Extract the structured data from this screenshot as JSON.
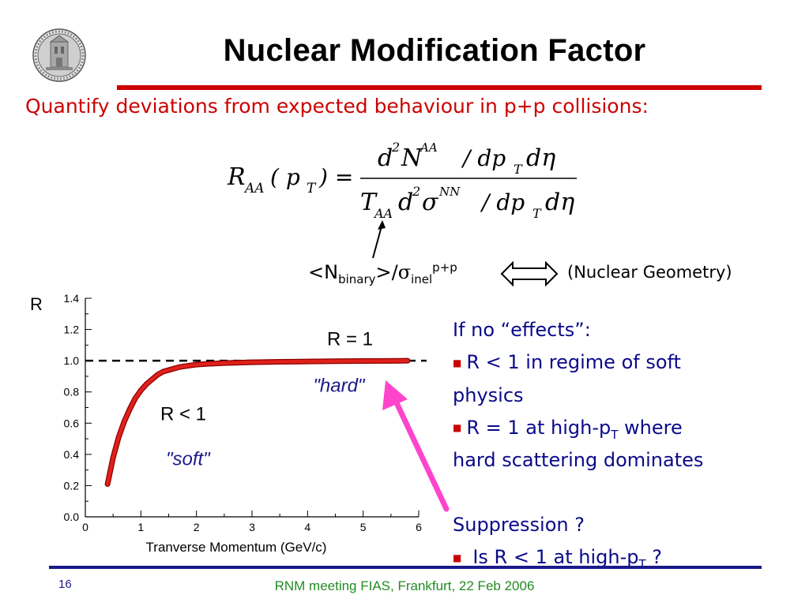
{
  "slide": {
    "title": "Nuclear Modification Factor",
    "subtitle": "Quantify deviations from expected behaviour in p+p collisions:",
    "page_number": "16",
    "footer": "RNM meeting FIAS, Frankfurt, 22 Feb 2006"
  },
  "formula": {
    "lhs_R": "R",
    "lhs_sub": "AA",
    "lhs_args": "( p",
    "lhs_T": "T",
    "lhs_close": ") =",
    "num_d": "d",
    "num_2": "2",
    "num_N": "N",
    "num_AA": "AA",
    "num_rest": "/ dp",
    "num_T": "T",
    "num_deta": "dη",
    "den_T": "T",
    "den_AA": "AA",
    "den_d": "d",
    "den_2": "2",
    "den_sigma": "σ",
    "den_NN": "NN",
    "den_rest": "/ dp",
    "den_Tsub": "T",
    "den_deta": "dη"
  },
  "geometry": {
    "open": "<N",
    "binary": "binary",
    "close": ">/",
    "sigma": "σ",
    "inel": "inel",
    "pp": "p+p",
    "label": "(Nuclear Geometry)"
  },
  "chart_data": {
    "type": "line",
    "ylabel": "R",
    "xlabel": "Tranverse Momentum (GeV/c)",
    "xlim": [
      0,
      6
    ],
    "ylim": [
      0.0,
      1.4
    ],
    "x_ticks": [
      "0",
      "1",
      "2",
      "3",
      "4",
      "5",
      "6"
    ],
    "y_ticks": [
      "0.0",
      "0.2",
      "0.4",
      "0.6",
      "0.8",
      "1.0",
      "1.2",
      "1.4"
    ],
    "reference_line": {
      "y": 1.0,
      "style": "dashed",
      "label": "R = 1"
    },
    "series": [
      {
        "color": "#e0201b",
        "x": [
          0.4,
          0.5,
          0.6,
          0.7,
          0.8,
          0.9,
          1.0,
          1.1,
          1.2,
          1.3,
          1.4,
          1.5,
          1.6,
          1.7,
          1.8,
          1.9,
          2.0,
          2.2,
          2.5,
          3.0,
          3.5,
          4.0,
          4.5,
          5.0,
          5.5,
          5.8
        ],
        "values": [
          0.21,
          0.38,
          0.51,
          0.61,
          0.69,
          0.76,
          0.81,
          0.85,
          0.88,
          0.91,
          0.93,
          0.94,
          0.95,
          0.96,
          0.965,
          0.97,
          0.975,
          0.98,
          0.985,
          0.99,
          0.993,
          0.995,
          0.997,
          0.998,
          0.999,
          1.0
        ]
      }
    ],
    "annotations": [
      {
        "text": "R < 1",
        "x": 1.35,
        "y": 0.62,
        "color": "#000000"
      },
      {
        "text": "\"soft\"",
        "x": 1.45,
        "y": 0.33,
        "color": "#1a1a8a",
        "italic": true
      },
      {
        "text": "\"hard\"",
        "x": 4.1,
        "y": 0.8,
        "color": "#1a1a8a",
        "italic": true
      },
      {
        "text": "R = 1",
        "x": 4.35,
        "y": 1.1,
        "color": "#000000"
      }
    ]
  },
  "side_text": {
    "heading": "If no “effects”:",
    "bullet1_a": "R < 1 in regime of soft",
    "bullet1_b": "physics",
    "bullet2_a": "R = 1 at high-p",
    "bullet2_T": "T",
    "bullet2_b": " where",
    "bullet2_c": "hard scattering dominates",
    "suppression": "Suppression ?",
    "bullet3_a": "Is R < 1 at high-p",
    "bullet3_T": "T",
    "bullet3_b": " ?",
    "bullet_glyph": "■"
  },
  "colors": {
    "title_rule": "#cc0000",
    "subtitle": "#cc0000",
    "side_text": "#0a0a8a",
    "curve": "#e0201b",
    "magenta_arrow": "#ff44cc",
    "footer": "#228b22",
    "bottom_rule": "#1a1a8a"
  },
  "icons": {
    "logo": "university-seal-icon",
    "double_arrow": "double-headed-arrow-icon",
    "pointer": "pointer-arrow-icon",
    "magenta_arrow": "magenta-arrow-icon"
  }
}
